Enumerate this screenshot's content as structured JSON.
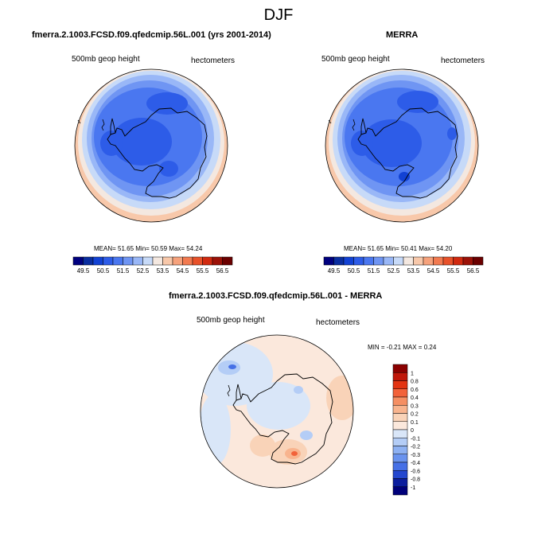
{
  "main_title": "DJF",
  "colors": {
    "scale": [
      "#00007f",
      "#0a2ea0",
      "#1242d4",
      "#2d5ce8",
      "#4a77f0",
      "#6f95f3",
      "#99b7f7",
      "#c7daf8",
      "#f4e8e0",
      "#f8c8aa",
      "#f6a27c",
      "#f27a50",
      "#e8522a",
      "#d12a10",
      "#9c1208",
      "#6b0000"
    ],
    "ocean_outer": "#dfe9f7"
  },
  "panels": [
    {
      "title": "fmerra.2.1003.FCSD.f09.qfedcmip.56L.001 (yrs 2001-2014)",
      "var_label": "500mb geop height",
      "units_label": "hectometers",
      "stats": "MEAN=  51.65  Min=  50.59  Max=  54.24",
      "colorbar": {
        "levels": [
          "49.5",
          "50.5",
          "51.5",
          "52.5",
          "53.5",
          "54.5",
          "55.5",
          "56.5"
        ]
      }
    },
    {
      "title": "MERRA",
      "var_label": "500mb geop height",
      "units_label": "hectometers",
      "stats": "MEAN=  51.65  Min=  50.41  Max=  54.20",
      "colorbar": {
        "levels": [
          "49.5",
          "50.5",
          "51.5",
          "52.5",
          "53.5",
          "54.5",
          "55.5",
          "56.5"
        ]
      }
    }
  ],
  "diff_panel": {
    "title": "fmerra.2.1003.FCSD.f09.qfedcmip.56L.001 - MERRA",
    "var_label": "500mb geop height",
    "units_label": "hectometers",
    "stats": "MIN =  -0.21 MAX =   0.24",
    "colorbar": {
      "levels": [
        "1",
        "0.8",
        "0.6",
        "0.4",
        "0.3",
        "0.2",
        "0.1",
        "0",
        "-0.1",
        "-0.2",
        "-0.3",
        "-0.4",
        "-0.6",
        "-0.8",
        "-1"
      ],
      "colors": [
        "#8b0000",
        "#c0170a",
        "#e33412",
        "#f2623a",
        "#f58f63",
        "#f8b48e",
        "#f9d3b8",
        "#fbe8dc",
        "#d9e6f8",
        "#b4cdf6",
        "#8eb1f2",
        "#6a93ee",
        "#4670e6",
        "#2447cf",
        "#0c1e9e",
        "#00007a"
      ]
    }
  }
}
